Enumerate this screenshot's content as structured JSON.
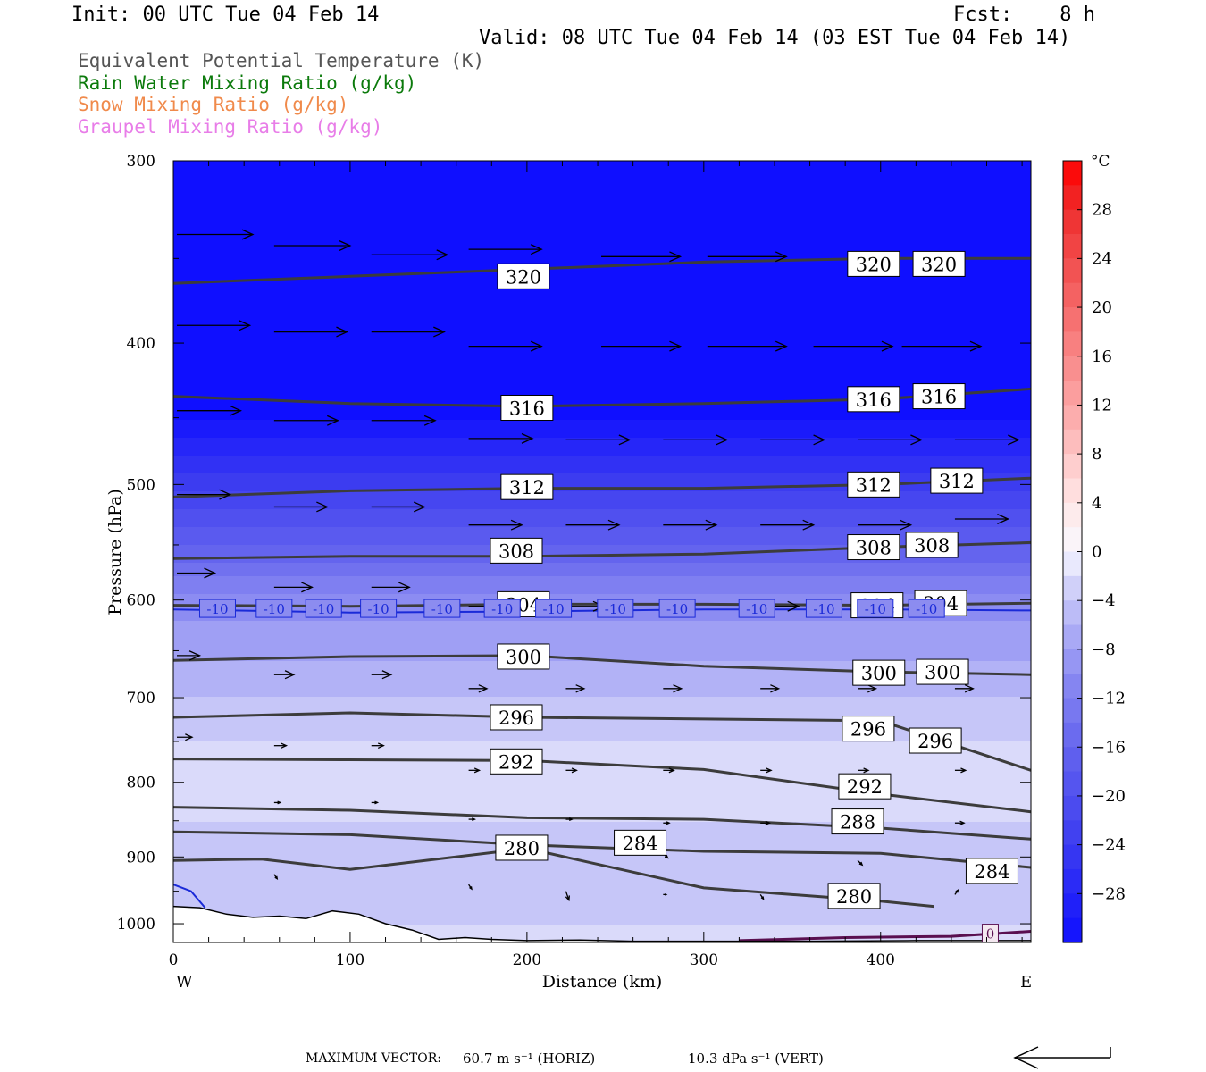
{
  "header": {
    "init": "Init: 00 UTC Tue 04 Feb 14",
    "fcst": "Fcst:    8 h",
    "valid": "Valid: 08 UTC Tue 04 Feb 14 (03 EST Tue 04 Feb 14)"
  },
  "legend": [
    {
      "text": "Equivalent Potential Temperature (K)",
      "color": "#555555"
    },
    {
      "text": "Rain Water Mixing Ratio (g/kg)",
      "color": "#0b7a0b"
    },
    {
      "text": "Snow Mixing Ratio (g/kg)",
      "color": "#f08a4b"
    },
    {
      "text": "Graupel Mixing Ratio (g/kg)",
      "color": "#e87de8"
    }
  ],
  "footer": {
    "max_vector_label": "MAXIMUM VECTOR:",
    "horiz": "60.7 m s⁻¹ (HORIZ)",
    "vert": "10.3 dPa s⁻¹ (VERT)"
  },
  "chart_data": {
    "type": "heatmap",
    "xlabel": "Distance (km)",
    "ylabel": "Pressure (hPa)",
    "x_ticks": [
      0,
      100,
      200,
      300,
      400
    ],
    "y_ticks": [
      300,
      400,
      500,
      600,
      700,
      800,
      900,
      1000
    ],
    "xlim": [
      0,
      485
    ],
    "ylim": [
      300,
      1030
    ],
    "y_log": true,
    "endpoint_left": "W",
    "endpoint_right": "E",
    "colorbar": {
      "unit": "°C",
      "ticks": [
        28,
        24,
        20,
        16,
        12,
        8,
        4,
        0,
        -4,
        -8,
        -12,
        -16,
        -20,
        -24,
        -28
      ],
      "range": [
        -32,
        32
      ]
    },
    "temperature_field_c": [
      {
        "p": 300,
        "t": -50
      },
      {
        "p": 400,
        "t": -38
      },
      {
        "p": 500,
        "t": -24
      },
      {
        "p": 600,
        "t": -10
      },
      {
        "p": 700,
        "t": -5
      },
      {
        "p": 800,
        "t": -1
      },
      {
        "p": 900,
        "t": -5
      },
      {
        "p": 1000,
        "t": -3
      }
    ],
    "theta_e_isolines": [
      {
        "value": 320,
        "x": [
          0,
          100,
          200,
          300,
          400,
          485
        ],
        "p": [
          364,
          360,
          356,
          352,
          350,
          350
        ]
      },
      {
        "value": 316,
        "x": [
          0,
          100,
          200,
          300,
          400,
          485
        ],
        "p": [
          435,
          440,
          442,
          440,
          437,
          430
        ]
      },
      {
        "value": 312,
        "x": [
          0,
          100,
          200,
          300,
          400,
          485
        ],
        "p": [
          510,
          505,
          503,
          503,
          500,
          495
        ]
      },
      {
        "value": 308,
        "x": [
          0,
          100,
          200,
          300,
          400,
          485
        ],
        "p": [
          562,
          560,
          560,
          558,
          552,
          548
        ]
      },
      {
        "value": 304,
        "x": [
          0,
          100,
          200,
          300,
          400,
          485
        ],
        "p": [
          605,
          606,
          604,
          604,
          605,
          603
        ]
      },
      {
        "value": 300,
        "x": [
          0,
          100,
          200,
          300,
          400,
          485
        ],
        "p": [
          660,
          656,
          655,
          666,
          672,
          675
        ]
      },
      {
        "value": 296,
        "x": [
          0,
          100,
          200,
          300,
          400,
          485
        ],
        "p": [
          722,
          717,
          722,
          724,
          726,
          785
        ]
      },
      {
        "value": 292,
        "x": [
          0,
          100,
          200,
          300,
          400,
          485
        ],
        "p": [
          771,
          772,
          773,
          784,
          815,
          838
        ]
      },
      {
        "value": 288,
        "x": [
          0,
          100,
          200,
          300,
          400,
          485
        ],
        "p": [
          832,
          836,
          846,
          848,
          860,
          875
        ]
      },
      {
        "value": 284,
        "x": [
          0,
          100,
          200,
          300,
          400,
          485
        ],
        "p": [
          865,
          869,
          883,
          892,
          895,
          915
        ]
      },
      {
        "value": 280,
        "x": [
          0,
          50,
          100,
          200,
          300,
          400,
          430
        ],
        "p": [
          905,
          903,
          918,
          888,
          945,
          965,
          973
        ]
      }
    ],
    "contour_labels": [
      {
        "text": "320",
        "x": 198,
        "p": 360
      },
      {
        "text": "320",
        "x": 396,
        "p": 353
      },
      {
        "text": "320",
        "x": 433,
        "p": 353
      },
      {
        "text": "316",
        "x": 200,
        "p": 443
      },
      {
        "text": "316",
        "x": 396,
        "p": 437
      },
      {
        "text": "316",
        "x": 433,
        "p": 435
      },
      {
        "text": "312",
        "x": 200,
        "p": 502
      },
      {
        "text": "312",
        "x": 396,
        "p": 500
      },
      {
        "text": "312",
        "x": 443,
        "p": 497
      },
      {
        "text": "308",
        "x": 194,
        "p": 555
      },
      {
        "text": "308",
        "x": 396,
        "p": 552
      },
      {
        "text": "308",
        "x": 429,
        "p": 550
      },
      {
        "text": "304",
        "x": 198,
        "p": 604
      },
      {
        "text": "304",
        "x": 398,
        "p": 605
      },
      {
        "text": "304",
        "x": 434,
        "p": 603
      },
      {
        "text": "300",
        "x": 198,
        "p": 656
      },
      {
        "text": "300",
        "x": 399,
        "p": 673
      },
      {
        "text": "300",
        "x": 435,
        "p": 672
      },
      {
        "text": "296",
        "x": 194,
        "p": 722
      },
      {
        "text": "296",
        "x": 393,
        "p": 735
      },
      {
        "text": "296",
        "x": 431,
        "p": 749
      },
      {
        "text": "292",
        "x": 194,
        "p": 774
      },
      {
        "text": "292",
        "x": 391,
        "p": 805
      },
      {
        "text": "288",
        "x": 387,
        "p": 851
      },
      {
        "text": "284",
        "x": 264,
        "p": 880
      },
      {
        "text": "284",
        "x": 463,
        "p": 920
      },
      {
        "text": "280",
        "x": 197,
        "p": 887
      },
      {
        "text": "280",
        "x": 385,
        "p": 957
      }
    ],
    "temperature_isolines_c": [
      {
        "value": -10,
        "x": [
          0,
          100,
          200,
          300,
          400,
          485
        ],
        "p": [
          609,
          612,
          611,
          609,
          609,
          610
        ]
      },
      {
        "value": -10,
        "x": [
          0,
          10,
          18
        ],
        "p": [
          940,
          950,
          975
        ]
      },
      {
        "value": 0,
        "x": [
          320,
          380,
          440,
          485
        ],
        "p": [
          1027,
          1022,
          1020,
          1012
        ]
      }
    ],
    "temperature_labels": [
      "-10",
      "-10",
      "-10",
      "-10",
      "-10",
      "-10",
      "-10",
      "-10",
      "-10",
      "-10",
      "-10",
      "-10",
      "-10",
      "0"
    ],
    "wind_vectors": [
      {
        "x": 0,
        "p": 337,
        "u": 50,
        "w": 0
      },
      {
        "x": 55,
        "p": 343,
        "u": 50,
        "w": 0
      },
      {
        "x": 110,
        "p": 348,
        "u": 50,
        "w": 0
      },
      {
        "x": 165,
        "p": 345,
        "u": 48,
        "w": 0
      },
      {
        "x": 240,
        "p": 349,
        "u": 52,
        "w": 0
      },
      {
        "x": 300,
        "p": 349,
        "u": 52,
        "w": 0
      },
      {
        "x": 0,
        "p": 389,
        "u": 48,
        "w": 0
      },
      {
        "x": 55,
        "p": 393,
        "u": 48,
        "w": 0
      },
      {
        "x": 110,
        "p": 393,
        "u": 48,
        "w": 0
      },
      {
        "x": 165,
        "p": 402,
        "u": 48,
        "w": 0
      },
      {
        "x": 240,
        "p": 402,
        "u": 52,
        "w": 0
      },
      {
        "x": 300,
        "p": 402,
        "u": 52,
        "w": 0
      },
      {
        "x": 360,
        "p": 402,
        "u": 52,
        "w": 0
      },
      {
        "x": 410,
        "p": 402,
        "u": 52,
        "w": 0
      },
      {
        "x": 0,
        "p": 445,
        "u": 42,
        "w": 0
      },
      {
        "x": 55,
        "p": 452,
        "u": 42,
        "w": 0
      },
      {
        "x": 110,
        "p": 452,
        "u": 42,
        "w": 0
      },
      {
        "x": 165,
        "p": 465,
        "u": 42,
        "w": 0
      },
      {
        "x": 220,
        "p": 466,
        "u": 42,
        "w": 0
      },
      {
        "x": 275,
        "p": 466,
        "u": 42,
        "w": 0
      },
      {
        "x": 330,
        "p": 466,
        "u": 42,
        "w": 0
      },
      {
        "x": 385,
        "p": 466,
        "u": 42,
        "w": 0
      },
      {
        "x": 440,
        "p": 466,
        "u": 42,
        "w": 0
      },
      {
        "x": 0,
        "p": 508,
        "u": 35,
        "w": 0
      },
      {
        "x": 55,
        "p": 518,
        "u": 35,
        "w": 0
      },
      {
        "x": 110,
        "p": 518,
        "u": 35,
        "w": 0
      },
      {
        "x": 165,
        "p": 533,
        "u": 35,
        "w": 0
      },
      {
        "x": 220,
        "p": 533,
        "u": 35,
        "w": 0
      },
      {
        "x": 275,
        "p": 533,
        "u": 35,
        "w": 0
      },
      {
        "x": 330,
        "p": 533,
        "u": 35,
        "w": 0
      },
      {
        "x": 385,
        "p": 533,
        "u": 35,
        "w": 0
      },
      {
        "x": 440,
        "p": 528,
        "u": 35,
        "w": 0
      },
      {
        "x": 0,
        "p": 575,
        "u": 25,
        "w": 0
      },
      {
        "x": 55,
        "p": 588,
        "u": 25,
        "w": 0
      },
      {
        "x": 110,
        "p": 588,
        "u": 25,
        "w": 0
      },
      {
        "x": 165,
        "p": 606,
        "u": 25,
        "w": 0
      },
      {
        "x": 220,
        "p": 606,
        "u": 25,
        "w": 0
      },
      {
        "x": 330,
        "p": 606,
        "u": 25,
        "w": 0
      },
      {
        "x": 385,
        "p": 606,
        "u": 25,
        "w": 0
      },
      {
        "x": 0,
        "p": 655,
        "u": 15,
        "w": 0
      },
      {
        "x": 55,
        "p": 675,
        "u": 13,
        "w": 0
      },
      {
        "x": 110,
        "p": 675,
        "u": 13,
        "w": 0
      },
      {
        "x": 165,
        "p": 690,
        "u": 12,
        "w": 0
      },
      {
        "x": 220,
        "p": 690,
        "u": 12,
        "w": 0
      },
      {
        "x": 275,
        "p": 690,
        "u": 12,
        "w": 0
      },
      {
        "x": 330,
        "p": 690,
        "u": 12,
        "w": 0
      },
      {
        "x": 385,
        "p": 690,
        "u": 12,
        "w": 0
      },
      {
        "x": 440,
        "p": 690,
        "u": 12,
        "w": 0
      },
      {
        "x": 0,
        "p": 745,
        "u": 10,
        "w": 0
      },
      {
        "x": 55,
        "p": 755,
        "u": 8,
        "w": 0
      },
      {
        "x": 110,
        "p": 755,
        "u": 8,
        "w": 0
      },
      {
        "x": 165,
        "p": 785,
        "u": 7,
        "w": 0
      },
      {
        "x": 220,
        "p": 785,
        "u": 7,
        "w": 0
      },
      {
        "x": 275,
        "p": 785,
        "u": 7,
        "w": 0
      },
      {
        "x": 330,
        "p": 785,
        "u": 7,
        "w": 0
      },
      {
        "x": 385,
        "p": 785,
        "u": 7,
        "w": 0
      },
      {
        "x": 440,
        "p": 785,
        "u": 7,
        "w": 0
      },
      {
        "x": 55,
        "p": 826,
        "u": 4,
        "w": 0
      },
      {
        "x": 110,
        "p": 826,
        "u": 4,
        "w": 0
      },
      {
        "x": 165,
        "p": 848,
        "u": 4,
        "w": 0
      },
      {
        "x": 220,
        "p": 848,
        "u": 4,
        "w": 0
      },
      {
        "x": 275,
        "p": 853,
        "u": 4,
        "w": 0
      },
      {
        "x": 330,
        "p": 853,
        "u": 6,
        "w": 0
      },
      {
        "x": 440,
        "p": 853,
        "u": 6,
        "w": 0
      },
      {
        "x": 275,
        "p": 895,
        "u": 3,
        "w": -1
      },
      {
        "x": 385,
        "p": 905,
        "u": 3,
        "w": -1
      },
      {
        "x": 55,
        "p": 925,
        "u": 2,
        "w": -1
      },
      {
        "x": 165,
        "p": 940,
        "u": 2,
        "w": -1
      },
      {
        "x": 220,
        "p": 950,
        "u": 2,
        "w": -2
      },
      {
        "x": 275,
        "p": 955,
        "u": 2,
        "w": 0
      },
      {
        "x": 330,
        "p": 955,
        "u": 2,
        "w": -1
      },
      {
        "x": 385,
        "p": 955,
        "u": 3,
        "w": 0
      },
      {
        "x": 440,
        "p": 955,
        "u": 2,
        "w": 1
      }
    ],
    "terrain_surface_p": {
      "x": [
        0,
        15,
        30,
        45,
        60,
        75,
        90,
        105,
        120,
        135,
        150,
        165,
        180,
        200,
        230,
        260,
        300,
        360,
        420,
        485
      ],
      "p": [
        973,
        975,
        985,
        990,
        988,
        992,
        980,
        985,
        1000,
        1010,
        1025,
        1022,
        1025,
        1027,
        1026,
        1028,
        1028,
        1028,
        1027,
        1027
      ]
    }
  }
}
